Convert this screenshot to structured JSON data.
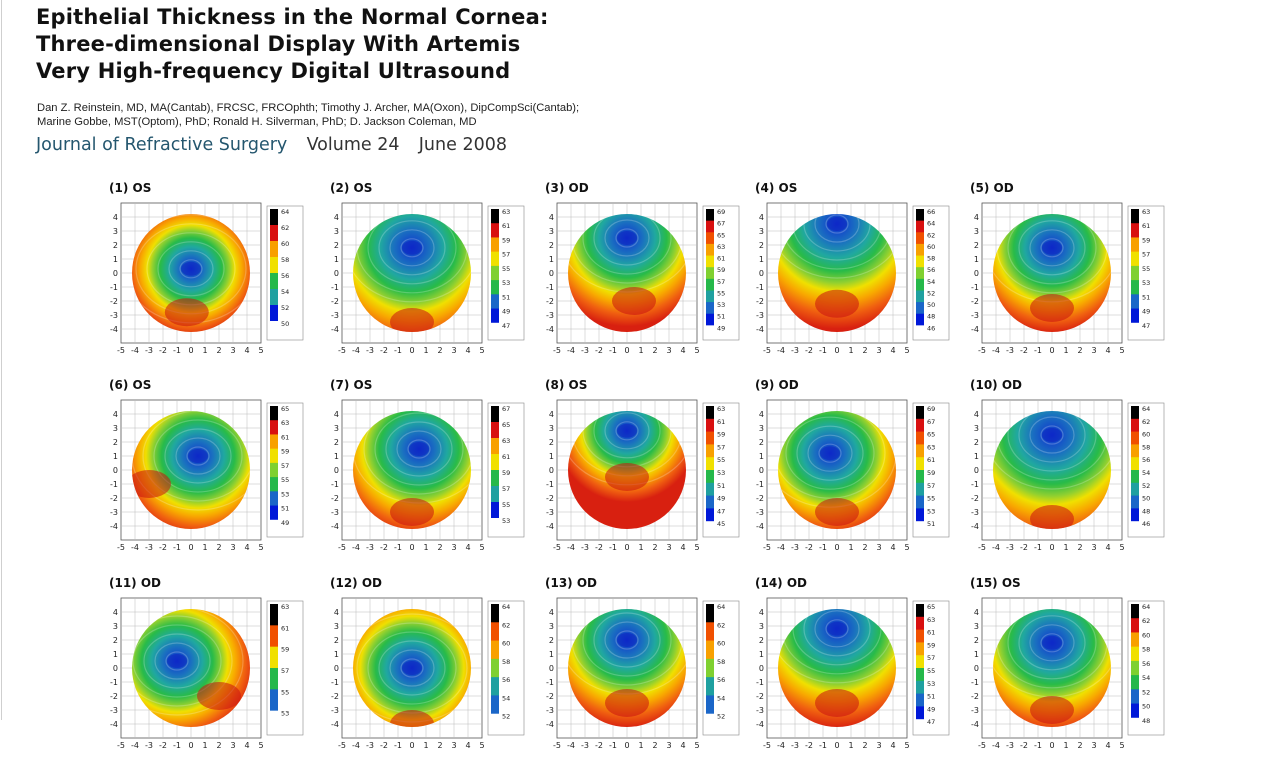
{
  "paper": {
    "title_lines": [
      "Epithelial Thickness in the Normal Cornea:",
      "Three-dimensional Display With Artemis",
      "Very High-frequency Digital Ultrasound"
    ],
    "authors_lines": [
      "Dan Z. Reinstein, MD, MA(Cantab), FRCSC, FRCOphth; Timothy J. Archer, MA(Oxon), DipCompSci(Cantab);",
      "Marine Gobbe, MST(Optom), PhD; Ronald H. Silverman, PhD; D. Jackson Coleman, MD"
    ],
    "journal": "Journal of Refractive Surgery",
    "volume": "Volume 24",
    "date": "June 2008"
  },
  "colors": {
    "journal": "#24566e",
    "colormap": [
      "#ffffff",
      "#0018d8",
      "#1a66c8",
      "#1fa0a0",
      "#25b84a",
      "#7fd030",
      "#f0e000",
      "#f8a000",
      "#f05000",
      "#d81010",
      "#000000"
    ]
  },
  "chart_data": {
    "type": "heatmap",
    "x_ticks": [
      "-5",
      "-4",
      "-3",
      "-2",
      "-1",
      "0",
      "1",
      "2",
      "3",
      "4",
      "5"
    ],
    "y_ticks": [
      "4",
      "3",
      "2",
      "1",
      "0",
      "-1",
      "-2",
      "-3",
      "-4"
    ],
    "xlim": [
      -5,
      5
    ],
    "ylim": [
      -5,
      5
    ],
    "grid": true,
    "panels": [
      {
        "label": "(1) OS",
        "scale": [
          "64",
          "62",
          "60",
          "58",
          "56",
          "54",
          "52",
          "50"
        ],
        "thin": [
          0.0,
          0.3
        ],
        "thick": [
          -0.3,
          -2.8
        ]
      },
      {
        "label": "(2) OS",
        "scale": [
          "63",
          "61",
          "59",
          "57",
          "55",
          "53",
          "51",
          "49",
          "47"
        ],
        "thin": [
          0.0,
          1.8
        ],
        "thick": [
          0.0,
          -3.5
        ]
      },
      {
        "label": "(3) OD",
        "scale": [
          "69",
          "67",
          "65",
          "63",
          "61",
          "59",
          "57",
          "55",
          "53",
          "51",
          "49"
        ],
        "thin": [
          0.0,
          2.5
        ],
        "thick": [
          0.5,
          -2.0
        ]
      },
      {
        "label": "(4) OS",
        "scale": [
          "66",
          "64",
          "62",
          "60",
          "58",
          "56",
          "54",
          "52",
          "50",
          "48",
          "46"
        ],
        "thin": [
          0.0,
          3.5
        ],
        "thick": [
          0.0,
          -2.2
        ]
      },
      {
        "label": "(5) OD",
        "scale": [
          "63",
          "61",
          "59",
          "57",
          "55",
          "53",
          "51",
          "49",
          "47"
        ],
        "thin": [
          0.0,
          1.8
        ],
        "thick": [
          0.0,
          -2.5
        ]
      },
      {
        "label": "(6) OS",
        "scale": [
          "65",
          "63",
          "61",
          "59",
          "57",
          "55",
          "53",
          "51",
          "49"
        ],
        "thin": [
          0.5,
          1.0
        ],
        "thick": [
          -3.0,
          -1.0
        ]
      },
      {
        "label": "(7) OS",
        "scale": [
          "67",
          "65",
          "63",
          "61",
          "59",
          "57",
          "55",
          "53"
        ],
        "thin": [
          0.5,
          1.5
        ],
        "thick": [
          0.0,
          -3.0
        ]
      },
      {
        "label": "(8) OS",
        "scale": [
          "63",
          "61",
          "59",
          "57",
          "55",
          "53",
          "51",
          "49",
          "47",
          "45"
        ],
        "thin": [
          0.0,
          2.8
        ],
        "thick": [
          0.0,
          -0.5
        ]
      },
      {
        "label": "(9) OD",
        "scale": [
          "69",
          "67",
          "65",
          "63",
          "61",
          "59",
          "57",
          "55",
          "53",
          "51"
        ],
        "thin": [
          -0.5,
          1.2
        ],
        "thick": [
          0.0,
          -3.0
        ]
      },
      {
        "label": "(10) OD",
        "scale": [
          "64",
          "62",
          "60",
          "58",
          "56",
          "54",
          "52",
          "50",
          "48",
          "46"
        ],
        "thin": [
          0.0,
          2.5
        ],
        "thick": [
          0.0,
          -3.5
        ]
      },
      {
        "label": "(11) OD",
        "scale": [
          "63",
          "61",
          "59",
          "57",
          "55",
          "53"
        ],
        "thin": [
          -1.0,
          0.5
        ],
        "thick": [
          2.0,
          -2.0
        ]
      },
      {
        "label": "(12) OD",
        "scale": [
          "64",
          "62",
          "60",
          "58",
          "56",
          "54",
          "52"
        ],
        "thin": [
          0.0,
          0.0
        ],
        "thick": [
          0.0,
          -4.0
        ]
      },
      {
        "label": "(13) OD",
        "scale": [
          "64",
          "62",
          "60",
          "58",
          "56",
          "54",
          "52"
        ],
        "thin": [
          0.0,
          2.0
        ],
        "thick": [
          0.0,
          -2.5
        ]
      },
      {
        "label": "(14) OD",
        "scale": [
          "65",
          "63",
          "61",
          "59",
          "57",
          "55",
          "53",
          "51",
          "49",
          "47"
        ],
        "thin": [
          0.0,
          2.8
        ],
        "thick": [
          0.0,
          -2.5
        ]
      },
      {
        "label": "(15) OS",
        "scale": [
          "64",
          "62",
          "60",
          "58",
          "56",
          "54",
          "52",
          "50",
          "48"
        ],
        "thin": [
          0.0,
          1.8
        ],
        "thick": [
          0.0,
          -3.0
        ]
      }
    ]
  }
}
